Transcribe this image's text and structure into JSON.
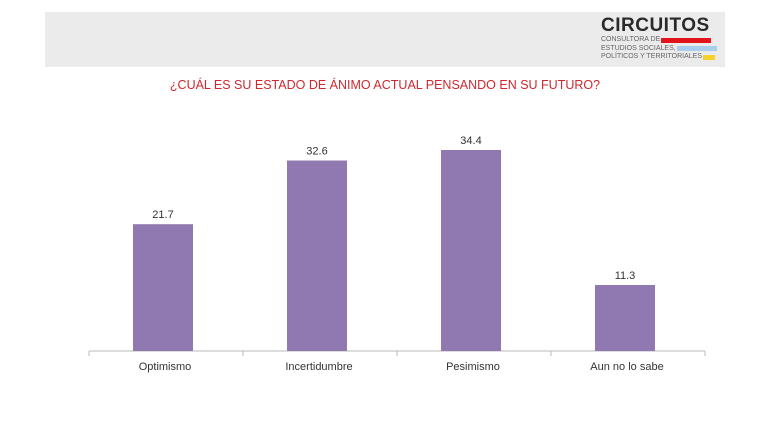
{
  "logo": {
    "brand": "CIRCUITOS",
    "lines": [
      "CONSULTORA DE",
      "ESTUDIOS SOCIALES,",
      "POLÍTICOS Y TERRITORIALES"
    ],
    "colors": [
      "#e3131b",
      "#a9cdee",
      "#f5d12a"
    ]
  },
  "chart_data": {
    "type": "bar",
    "title": "¿CUÁL ES SU ESTADO DE ÁNIMO ACTUAL PENSANDO EN SU FUTURO?",
    "categories": [
      "Optimismo",
      "Incertidumbre",
      "Pesimismo",
      "Aun no lo sabe"
    ],
    "values": [
      21.7,
      32.6,
      34.4,
      11.3
    ],
    "value_labels": [
      "21.7",
      "32.6",
      "34.4",
      "11.3"
    ],
    "xlabel": "",
    "ylabel": "",
    "ylim": [
      0,
      34.4
    ],
    "grid": false,
    "bar_color": "#8f79b0",
    "title_color": "#d0282e"
  }
}
